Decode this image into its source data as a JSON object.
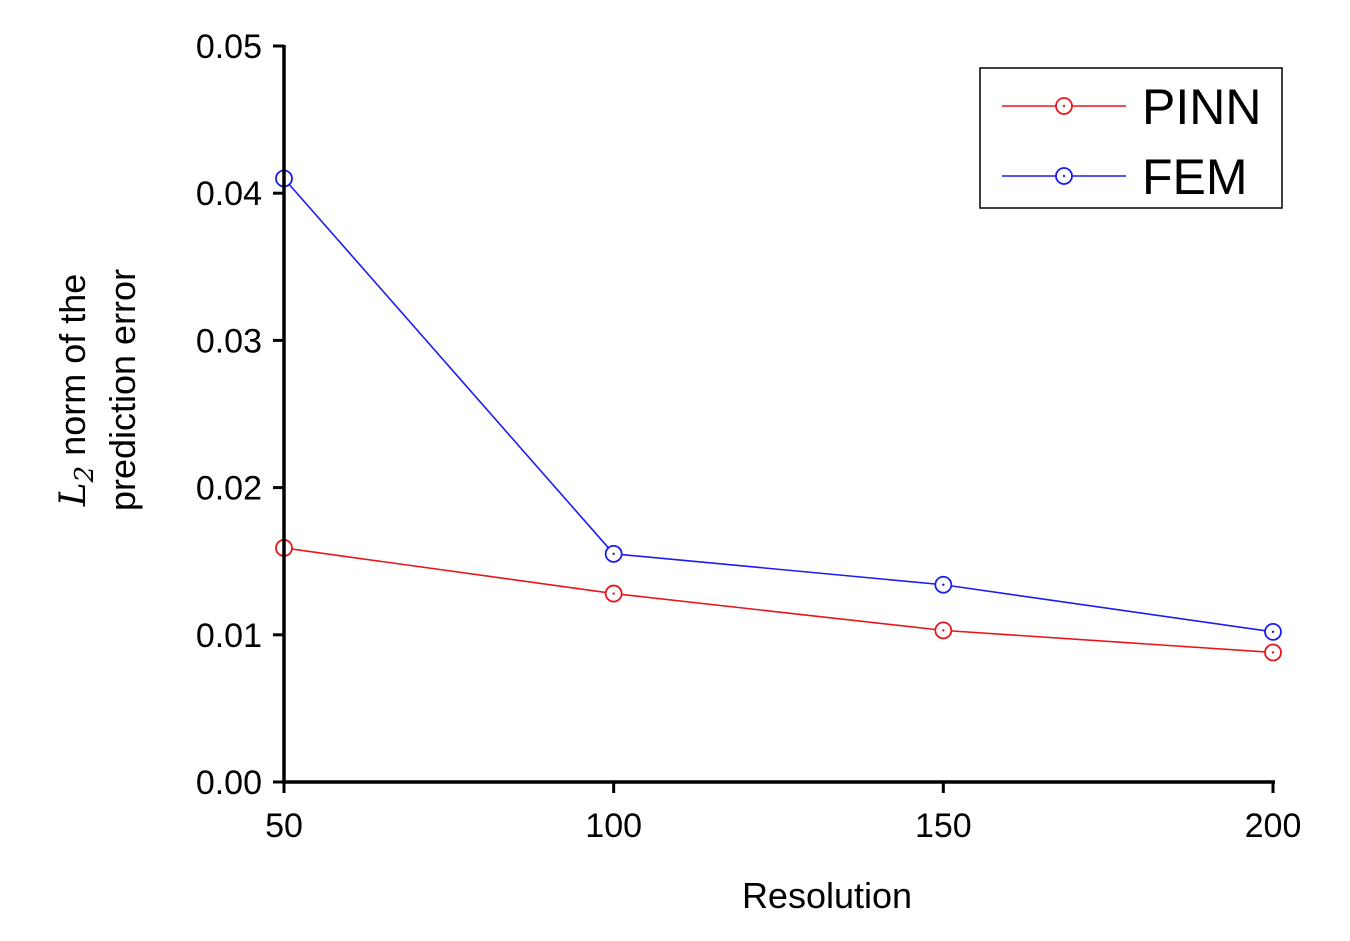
{
  "chart_data": {
    "type": "line",
    "title": "",
    "xlabel": "Resolution",
    "ylabel": {
      "symbol": "L",
      "subscript": "2",
      "line1_rest": " norm of the",
      "line2": "prediction error"
    },
    "x": [
      50,
      100,
      150,
      200
    ],
    "xlim": [
      50,
      200
    ],
    "ylim": [
      0,
      0.05
    ],
    "x_ticks": [
      "50",
      "100",
      "150",
      "200"
    ],
    "y_ticks": [
      "0.00",
      "0.01",
      "0.02",
      "0.03",
      "0.04",
      "0.05"
    ],
    "grid": false,
    "legend_position": "top-right",
    "series": [
      {
        "name": "PINN",
        "color": "#e8161b",
        "marker": "circle-dot",
        "values": [
          0.0159,
          0.0128,
          0.0103,
          0.0088
        ]
      },
      {
        "name": "FEM",
        "color": "#1c1cf0",
        "marker": "circle-dot",
        "values": [
          0.041,
          0.0155,
          0.0134,
          0.0102
        ]
      }
    ]
  }
}
